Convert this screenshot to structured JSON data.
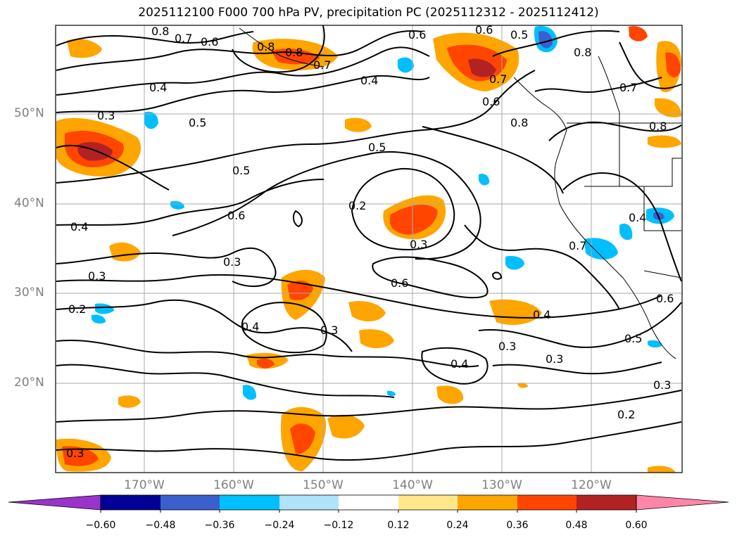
{
  "title": "2025112100 F000 700 hPa PV, precipitation PC (2025112312 - 2025112412)",
  "latitude_labels": [
    "50°N",
    "40°N",
    "30°N",
    "20°N"
  ],
  "longitude_labels": [
    "170°W",
    "160°W",
    "150°W",
    "140°W",
    "130°W",
    "120°W"
  ],
  "contour_labels": [
    "0.8",
    "0.7",
    "0.6",
    "0.8",
    "0.8",
    "0.6",
    "0.5",
    "0.8",
    "0.6",
    "0.4",
    "0.7",
    "0.7",
    "0.4",
    "0.7",
    "0.6",
    "0.8",
    "0.8",
    "0.3",
    "0.5",
    "0.5",
    "0.5",
    "0.2",
    "0.6",
    "0.4",
    "0.4",
    "0.3",
    "0.3",
    "0.6",
    "0.3",
    "0.2",
    "0.4",
    "0.3",
    "0.4",
    "0.3",
    "0.4",
    "0.3",
    "0.5",
    "0.3",
    "0.2",
    "0.3",
    "0.6",
    "0.7"
  ],
  "colorbar": {
    "ticks": [
      "−0.60",
      "−0.48",
      "−0.36",
      "−0.24",
      "−0.12",
      "0.12",
      "0.24",
      "0.36",
      "0.48",
      "0.60"
    ],
    "colors": [
      "#9933cc",
      "#000099",
      "#3b5fcf",
      "#00bfff",
      "#aee3fa",
      "#ffffff",
      "#ffe88a",
      "#ffa500",
      "#ff4500",
      "#b22222",
      "#ff85a8"
    ]
  },
  "legend_colors": {
    "frame": "#000000",
    "grid": "#aaaaaa",
    "contour": "#000000",
    "coast": "#000000"
  }
}
